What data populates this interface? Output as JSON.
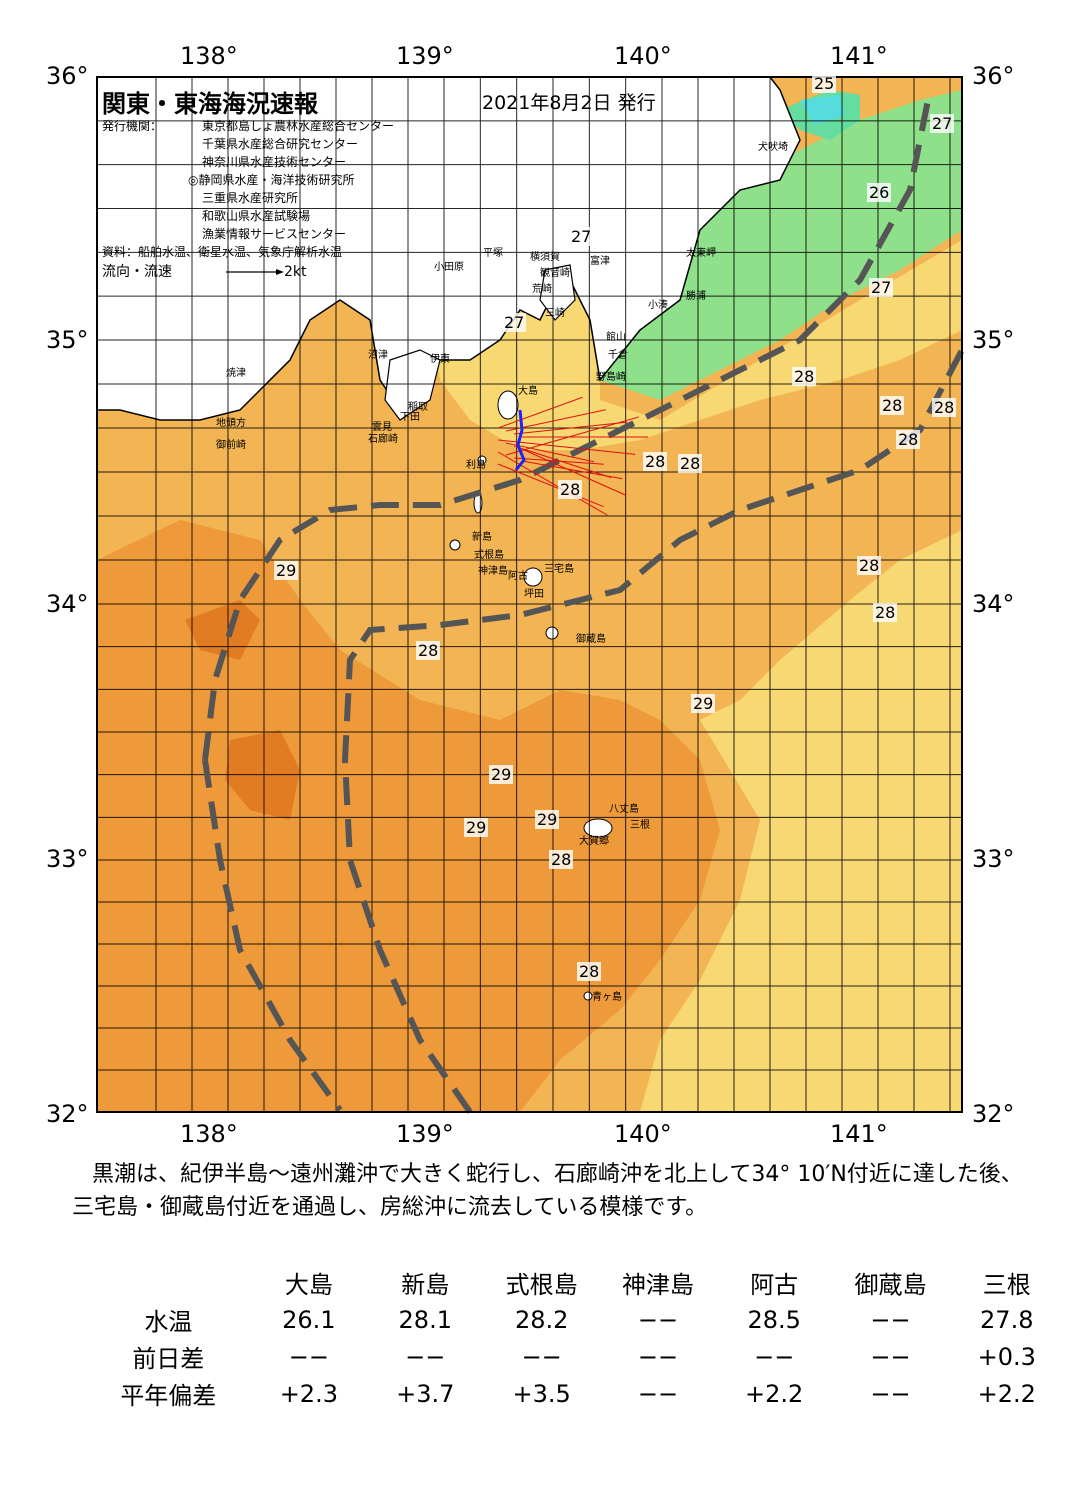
{
  "header": {
    "title": "関東・東海海況速報",
    "issue_date": "2021年8月2日 発行",
    "agencies_label": "発行機関：",
    "agencies": [
      "東京都島しょ農林水産総合センター",
      "千葉県水産総合研究センター",
      "神奈川県水産技術センター",
      "◎静岡県水産・海洋技術研究所",
      "三重県水産研究所",
      "和歌山県水産試験場",
      "漁業情報サービスセンター"
    ],
    "sources": "資料：船舶水温、衛星水温、気象庁解析水温",
    "flow_legend_label": "流向・流速",
    "flow_legend_value": "2kt"
  },
  "axes": {
    "lon_ticks": [
      "138°",
      "139°",
      "140°",
      "141°"
    ],
    "lat_ticks": [
      "36°",
      "35°",
      "34°",
      "33°",
      "32°"
    ]
  },
  "temperature_labels": [
    "25",
    "27",
    "26",
    "27",
    "27",
    "27",
    "28",
    "28",
    "28",
    "28",
    "28",
    "28",
    "28",
    "29",
    "28",
    "28",
    "28",
    "29",
    "29",
    "29",
    "29",
    "28",
    "28"
  ],
  "place_names": [
    "犬吠埼",
    "太東岬",
    "勝浦",
    "小湊",
    "館山",
    "千倉",
    "野島崎",
    "富津",
    "横須賀",
    "観音崎",
    "荒崎",
    "三崎",
    "平塚",
    "小田原",
    "大島",
    "伊東",
    "稲取",
    "下田",
    "石廊崎",
    "御前崎",
    "地頭方",
    "焼津",
    "沼津",
    "雲見",
    "利島",
    "新島",
    "式根島",
    "神津島",
    "三宅島",
    "阿古",
    "坪田",
    "御蔵島",
    "八丈島",
    "大賀郷",
    "三根",
    "青ヶ島"
  ],
  "colors": {
    "kuroshio_line": "#555555",
    "t29": "#ee9a3a",
    "t28": "#f3b553",
    "t27": "#f7d873",
    "t26": "#e8ea8a",
    "t25": "#8fe08a",
    "t24": "#66dda0",
    "land": "#ffffff",
    "current_vectors": "#e01010",
    "track": "#2020ff"
  },
  "description": "黒潮は、紀伊半島～遠州灘沖で大きく蛇行し、石廊崎沖を北上して34° 10′N付近に達した後、三宅島・御蔵島付近を通過し、房総沖に流去している模様です。",
  "table": {
    "stations": [
      "大島",
      "新島",
      "式根島",
      "神津島",
      "阿古",
      "御蔵島",
      "三根"
    ],
    "rows": [
      {
        "label": "水温",
        "values": [
          "26.1",
          "28.1",
          "28.2",
          "−−",
          "28.5",
          "−−",
          "27.8"
        ]
      },
      {
        "label": "前日差",
        "values": [
          "−−",
          "−−",
          "−−",
          "−−",
          "−−",
          "−−",
          "+0.3"
        ]
      },
      {
        "label": "平年偏差",
        "values": [
          "+2.3",
          "+3.7",
          "+3.5",
          "−−",
          "+2.2",
          "−−",
          "+2.2"
        ]
      }
    ]
  }
}
